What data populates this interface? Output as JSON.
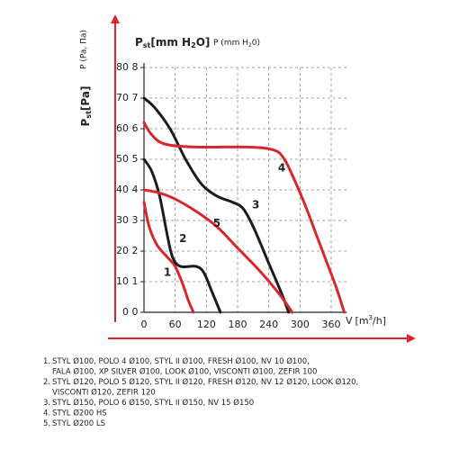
{
  "chart_data": {
    "type": "line",
    "x_label": {
      "main": "V",
      "unit_a": "[m",
      "sup": "3",
      "unit_b": "/h]"
    },
    "y_label": {
      "main": "P",
      "sub": "st",
      "unit": "[Pa]"
    },
    "y_label_alt": "P (Pa, Па)",
    "y2_label": {
      "main": "P",
      "sub": "st",
      "unit_a": "[mm H",
      "sub2": "2",
      "unit_b": "O]"
    },
    "y2_label_alt": {
      "main": "P (mm H",
      "sub": "2",
      "unit": "0)"
    },
    "xlim": [
      0,
      390
    ],
    "xticks": [
      0,
      60,
      120,
      180,
      240,
      300,
      360
    ],
    "ylim": [
      0,
      80
    ],
    "yticks": [
      0,
      10,
      20,
      30,
      40,
      50,
      60,
      70,
      80
    ],
    "y2lim": [
      0,
      8
    ],
    "y2ticks": [
      0,
      1,
      2,
      3,
      4,
      5,
      6,
      7,
      8
    ],
    "grid": true,
    "series": [
      {
        "name": "1",
        "color": "#d9262e",
        "x": [
          0,
          10,
          25,
          45,
          60,
          75,
          85,
          95
        ],
        "values": [
          36,
          28,
          22,
          18,
          15,
          9,
          4,
          0
        ]
      },
      {
        "name": "2",
        "color": "#1c1c1c",
        "x": [
          0,
          15,
          30,
          45,
          55,
          70,
          100,
          115,
          130,
          147
        ],
        "values": [
          50,
          46,
          38,
          25,
          18,
          15,
          15,
          13,
          7,
          0
        ]
      },
      {
        "name": "3",
        "color": "#1c1c1c",
        "x": [
          0,
          20,
          50,
          80,
          110,
          140,
          170,
          190,
          210,
          240,
          265,
          278
        ],
        "values": [
          70,
          67,
          60,
          50,
          42,
          38,
          36,
          34,
          28,
          16,
          6,
          0
        ]
      },
      {
        "name": "4",
        "color": "#d9262e",
        "x": [
          0,
          15,
          40,
          100,
          200,
          250,
          270,
          290,
          310,
          330,
          350,
          370,
          385
        ],
        "values": [
          62,
          58,
          55,
          54,
          54,
          53,
          50,
          43,
          35,
          26,
          17,
          8,
          0
        ]
      },
      {
        "name": "5",
        "color": "#d9262e",
        "x": [
          0,
          30,
          60,
          100,
          140,
          180,
          220,
          260,
          285
        ],
        "values": [
          40,
          39,
          37,
          33,
          28,
          21,
          14,
          6,
          0
        ]
      }
    ],
    "series_label_pos": [
      [
        45,
        13
      ],
      [
        75,
        24
      ],
      [
        215,
        35
      ],
      [
        265,
        47
      ],
      [
        140,
        29
      ]
    ],
    "notes": [
      {
        "label": "1.",
        "lines": [
          "STYL Ø100, POLO 4 Ø100, STYL II Ø100, FRESH Ø100, NV 10 Ø100,",
          "FALA Ø100, XP SILVER Ø100, LOOK Ø100, VISCONTI Ø100, ZEFIR 100"
        ]
      },
      {
        "label": "2.",
        "lines": [
          "STYL Ø120, POLO 5 Ø120, STYL II Ø120, FRESH Ø120, NV 12 Ø120, LOOK Ø120,",
          "VISCONTI Ø120,  ZEFIR 120"
        ]
      },
      {
        "label": "3.",
        "lines": [
          "STYL Ø150, POLO 6 Ø150, STYL II Ø150, NV 15 Ø150"
        ]
      },
      {
        "label": "4.",
        "lines": [
          "STYL Ø200 HS"
        ]
      },
      {
        "label": "5.",
        "lines": [
          "STYL Ø200 LS"
        ]
      }
    ]
  }
}
